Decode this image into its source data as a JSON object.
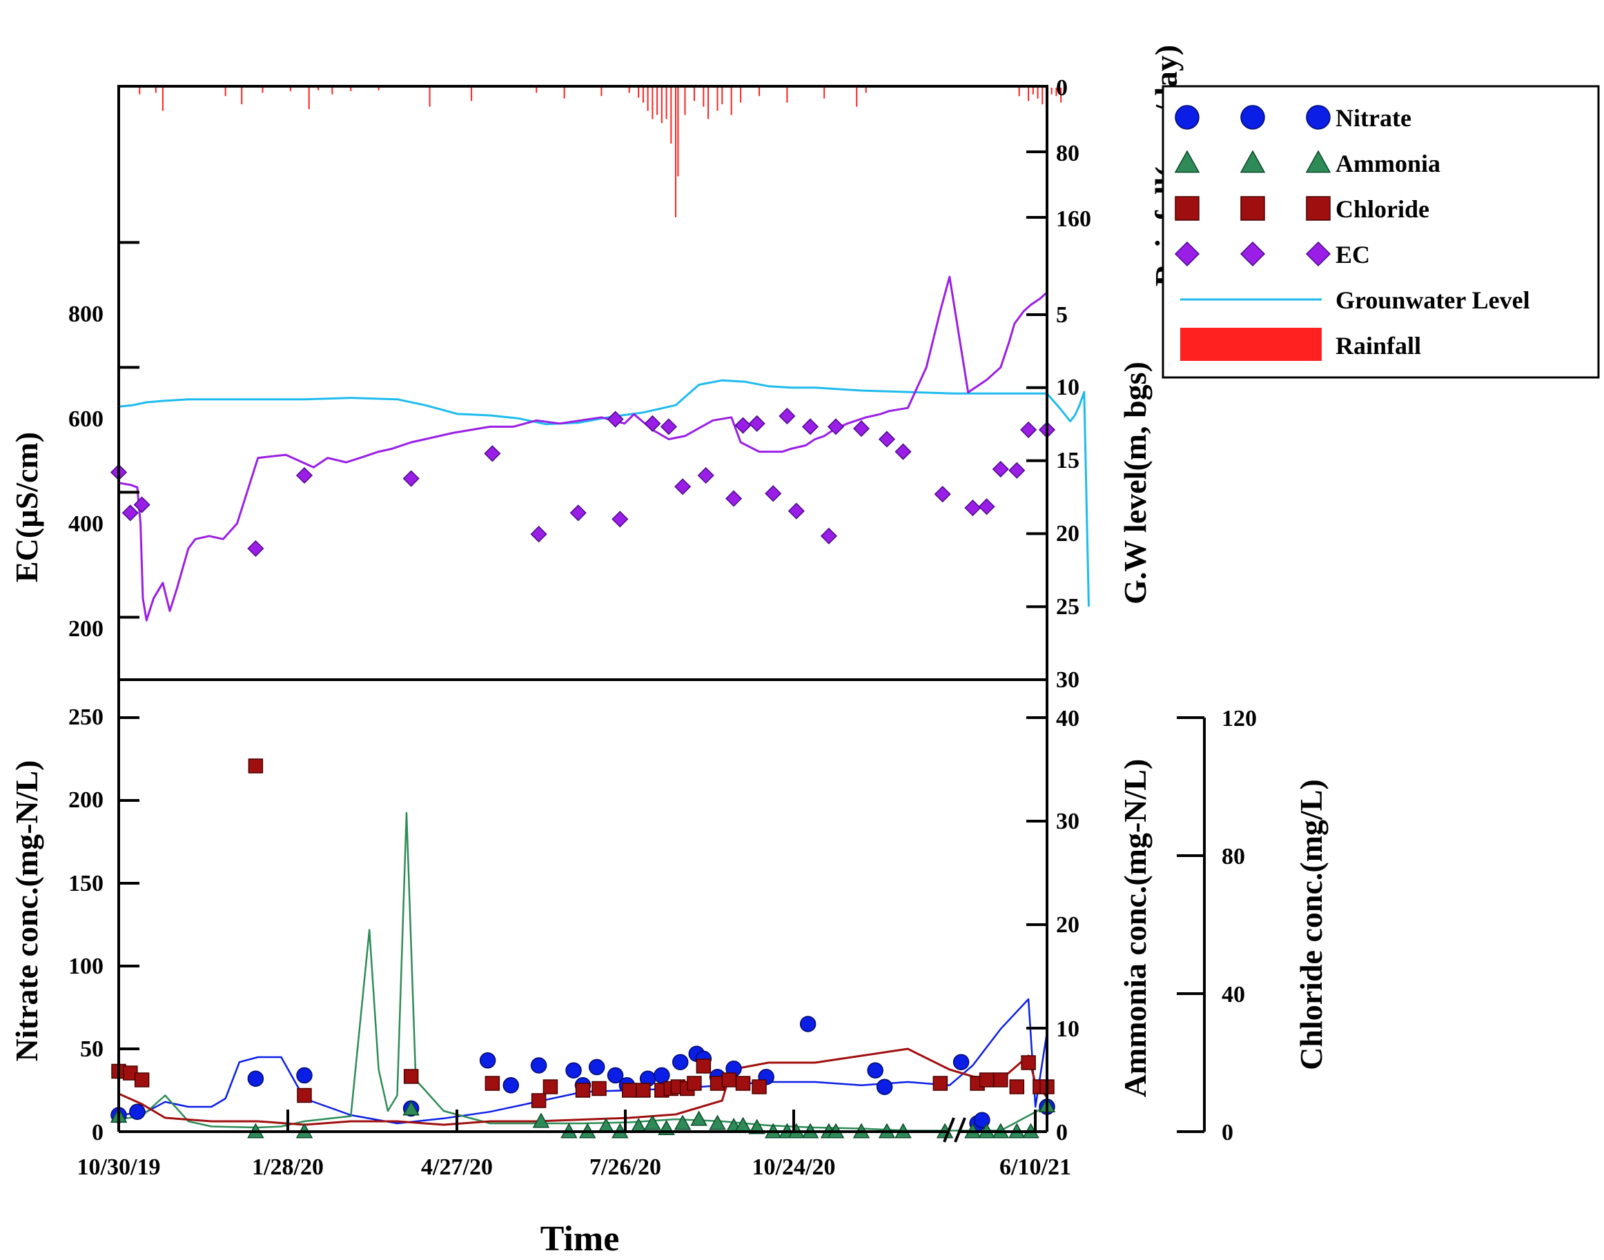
{
  "colors": {
    "nitrate": "#0a1ee6",
    "ammonia": "#2e8b57",
    "chloride": "#a00f0f",
    "ec": "#9a1ee6",
    "groundwater": "#1ebbee",
    "rainfall": "#ff2020"
  },
  "chart_data": [
    {
      "type": "line",
      "panel": "top",
      "xlabel": "Time",
      "ylabel_left": "EC(µS/cm)",
      "ylabel_right": "G.W level(m, bgs)",
      "ylabel_right_top": "Rainfall(mm/day)",
      "left_ticks": [
        "800",
        "600",
        "400",
        "200"
      ],
      "left_ylim": [
        100,
        1050
      ],
      "gw_ticks": [
        "5",
        "10",
        "15",
        "20",
        "25",
        "30"
      ],
      "gw_ylim": [
        5,
        30
      ],
      "rain_ticks": [
        "0",
        "80",
        "160"
      ],
      "rain_ylim": [
        0,
        180
      ],
      "legend": {
        "items": [
          {
            "key": "nitrate",
            "label": "Nitrate",
            "icon": "circle"
          },
          {
            "key": "ammonia",
            "label": "Ammonia",
            "icon": "triangle"
          },
          {
            "key": "chloride",
            "label": "Chloride",
            "icon": "square"
          },
          {
            "key": "ec",
            "label": "EC",
            "icon": "diamond"
          },
          {
            "key": "groundwater",
            "label": "Grounwater Level",
            "icon": "line"
          },
          {
            "key": "rainfall",
            "label": "Rainfall",
            "icon": "bar"
          }
        ]
      },
      "series": [
        {
          "name": "EC (continuous)",
          "x": [
            0,
            25,
            40,
            47,
            52,
            60,
            75,
            95,
            110,
            125,
            150,
            165,
            195,
            225,
            255,
            300,
            360,
            420,
            450,
            490,
            520,
            560,
            590,
            630,
            660,
            720,
            760,
            800,
            850,
            900,
            950,
            1040,
            1090,
            1110,
            1150,
            1185,
            1220,
            1280,
            1320,
            1340,
            1380,
            1430,
            1450,
            1480,
            1500,
            1520,
            1540,
            1570,
            1610,
            1640,
            1660,
            1700,
            1740,
            1770,
            1790,
            1830,
            1870,
            1900,
            1918,
            1930,
            1950,
            1965,
            1985,
            2000
          ],
          "values": [
            415,
            412,
            408,
            350,
            230,
            195,
            230,
            255,
            210,
            245,
            310,
            325,
            330,
            325,
            350,
            455,
            460,
            440,
            455,
            448,
            455,
            465,
            470,
            480,
            485,
            495,
            500,
            505,
            505,
            515,
            510,
            520,
            510,
            525,
            500,
            485,
            490,
            515,
            520,
            480,
            465,
            465,
            470,
            475,
            485,
            490,
            500,
            510,
            520,
            525,
            530,
            535,
            600,
            690,
            745,
            560,
            580,
            600,
            640,
            670,
            690,
            700,
            710,
            720
          ]
        },
        {
          "name": "EC (samples)",
          "x": [
            0,
            25,
            50,
            295,
            400,
            630,
            805,
            905,
            990,
            1070,
            1080,
            1150,
            1185,
            1215,
            1265,
            1325,
            1345,
            1375,
            1410,
            1440,
            1460,
            1490,
            1530,
            1545,
            1600,
            1655,
            1690,
            1775,
            1840,
            1870,
            1900,
            1935,
            1960,
            2000
          ],
          "values": [
            432,
            367,
            380,
            310,
            427,
            422,
            462,
            333,
            367,
            517,
            357,
            510,
            505,
            409,
            427,
            390,
            507,
            510,
            398,
            522,
            370,
            505,
            330,
            505,
            502,
            485,
            465,
            397,
            375,
            377,
            437,
            435,
            500,
            500
          ]
        },
        {
          "name": "Groundwater level",
          "x": [
            0,
            30,
            60,
            100,
            150,
            200,
            300,
            400,
            500,
            600,
            660,
            730,
            800,
            860,
            920,
            990,
            1060,
            1130,
            1200,
            1250,
            1300,
            1350,
            1400,
            1450,
            1500,
            1600,
            1700,
            1800,
            1900,
            2000,
            2030,
            2050,
            2060,
            2070,
            2080,
            2090
          ],
          "values": [
            11.3,
            11.2,
            11.0,
            10.9,
            10.8,
            10.8,
            10.8,
            10.8,
            10.7,
            10.8,
            11.2,
            11.8,
            11.9,
            12.1,
            12.5,
            12.4,
            12.0,
            11.7,
            11.2,
            9.8,
            9.5,
            9.6,
            9.9,
            10.0,
            10.0,
            10.2,
            10.3,
            10.4,
            10.4,
            10.4,
            11.5,
            12.3,
            11.9,
            11.2,
            10.3,
            25.0
          ]
        },
        {
          "name": "Rainfall (daily bars)",
          "x": [
            45,
            80,
            95,
            230,
            265,
            310,
            370,
            410,
            430,
            460,
            500,
            560,
            670,
            760,
            900,
            960,
            1040,
            1100,
            1120,
            1130,
            1140,
            1150,
            1160,
            1170,
            1180,
            1190,
            1200,
            1205,
            1220,
            1240,
            1260,
            1270,
            1290,
            1300,
            1320,
            1340,
            1380,
            1440,
            1520,
            1590,
            1610,
            1940,
            1960,
            1970,
            1980,
            1990,
            2000,
            2010,
            2020,
            2030
          ],
          "values": [
            10,
            8,
            30,
            12,
            22,
            8,
            6,
            28,
            5,
            10,
            6,
            5,
            25,
            18,
            8,
            15,
            12,
            8,
            14,
            20,
            30,
            40,
            35,
            45,
            40,
            70,
            160,
            110,
            35,
            18,
            25,
            40,
            30,
            22,
            35,
            20,
            12,
            20,
            15,
            25,
            8,
            12,
            18,
            10,
            15,
            22,
            12,
            10,
            12,
            20
          ]
        }
      ]
    },
    {
      "type": "scatter",
      "panel": "bottom",
      "xlabel": "Time",
      "ylabel_left": "Nitrate conc.(mg-N/L)",
      "ylabel_right": "Ammonia conc.(mg-N/L)",
      "ylabel_far_right": "Chloride conc.(mg/L)",
      "x_ticks": [
        "10/30/19",
        "1/28/20",
        "4/27/20",
        "7/26/20",
        "10/24/20",
        "6/10/21"
      ],
      "nitrate_ticks": [
        "0",
        "50",
        "100",
        "150",
        "200",
        "250"
      ],
      "nitrate_ylim": [
        0,
        250
      ],
      "ammonia_ticks": [
        "0",
        "10",
        "20",
        "30",
        "40"
      ],
      "ammonia_ylim": [
        0,
        40
      ],
      "chloride_ticks": [
        "0",
        "40",
        "80",
        "120"
      ],
      "chloride_ylim": [
        0,
        120
      ],
      "series": [
        {
          "name": "Nitrate (samples)",
          "x": [
            0,
            40,
            295,
            400,
            630,
            795,
            845,
            905,
            980,
            1000,
            1030,
            1070,
            1095,
            1140,
            1170,
            1210,
            1245,
            1260,
            1290,
            1325,
            1395,
            1485,
            1630,
            1650,
            1815,
            1850,
            1860,
            2000
          ],
          "values": [
            10,
            12,
            32,
            34,
            14,
            43,
            28,
            40,
            37,
            28,
            39,
            34,
            28,
            32,
            34,
            42,
            47,
            44,
            33,
            38,
            33,
            65,
            37,
            27,
            42,
            5,
            7,
            15
          ]
        },
        {
          "name": "Ammonia (samples)",
          "x": [
            0,
            295,
            400,
            630,
            910,
            970,
            1010,
            1050,
            1080,
            1120,
            1150,
            1180,
            1215,
            1250,
            1290,
            1325,
            1345,
            1375,
            1410,
            1440,
            1460,
            1490,
            1530,
            1545,
            1600,
            1655,
            1690,
            1780,
            1840,
            1870,
            1900,
            1935,
            1965,
            2000
          ],
          "values": [
            1.5,
            0,
            0,
            2.2,
            1.0,
            0,
            0,
            0.5,
            0,
            0.5,
            0.8,
            0.3,
            0.8,
            1.2,
            0.8,
            0.5,
            0.6,
            0.4,
            0,
            0,
            0,
            0,
            0,
            0,
            0,
            0,
            0,
            0,
            0,
            0,
            0,
            0,
            0,
            2.5
          ]
        },
        {
          "name": "Chloride (samples)",
          "x": [
            0,
            25,
            50,
            295,
            400,
            630,
            805,
            905,
            930,
            1000,
            1035,
            1100,
            1130,
            1170,
            1190,
            1205,
            1225,
            1240,
            1260,
            1290,
            1315,
            1345,
            1380,
            1770,
            1850,
            1870,
            1900,
            1935,
            1960,
            1985,
            2000
          ],
          "values": [
            17.5,
            17,
            15,
            106,
            10.5,
            16,
            14,
            9,
            13,
            12,
            12.5,
            12,
            12,
            12,
            12.5,
            13,
            12.5,
            14,
            19,
            14,
            15,
            14,
            13,
            14,
            14,
            15,
            15,
            13,
            20,
            13,
            13
          ]
        },
        {
          "name": "Nitrate (continuous)",
          "x": [
            0,
            60,
            100,
            150,
            200,
            230,
            260,
            300,
            350,
            400,
            450,
            500,
            600,
            700,
            800,
            900,
            1000,
            1100,
            1200,
            1300,
            1400,
            1500,
            1600,
            1700,
            1790,
            1840,
            1900,
            1960,
            1975,
            2000
          ],
          "values": [
            10,
            12,
            18,
            15,
            15,
            20,
            42,
            45,
            45,
            20,
            15,
            10,
            5,
            8,
            12,
            18,
            24,
            25,
            26,
            28,
            30,
            30,
            28,
            30,
            28,
            40,
            62,
            80,
            15,
            60
          ]
        },
        {
          "name": "Ammonia (continuous)",
          "x": [
            0,
            50,
            100,
            150,
            200,
            300,
            350,
            400,
            500,
            540,
            560,
            580,
            600,
            620,
            640,
            700,
            800,
            900,
            1000,
            1100,
            1200,
            1300,
            1400,
            1500,
            1600,
            1700,
            1800,
            1900,
            2000
          ],
          "values": [
            1.2,
            1.5,
            3.5,
            1.0,
            0.5,
            0.4,
            0.5,
            1.0,
            1.5,
            19.5,
            6,
            2,
            3.5,
            30.8,
            5,
            2.0,
            0.8,
            0.8,
            0.8,
            0.9,
            1.2,
            1.0,
            0.6,
            0.4,
            0.3,
            0.1,
            0.1,
            0.1,
            2.5
          ]
        },
        {
          "name": "Chloride (continuous)",
          "x": [
            0,
            50,
            100,
            200,
            300,
            400,
            500,
            600,
            700,
            800,
            900,
            1000,
            1100,
            1200,
            1250,
            1300,
            1320,
            1400,
            1500,
            1600,
            1700,
            1790,
            1840,
            1900,
            1960,
            1975,
            2000
          ],
          "values": [
            11,
            8,
            4,
            3,
            3,
            2,
            3,
            3,
            2,
            3,
            3,
            3.5,
            4,
            5,
            7,
            9,
            18,
            20,
            20,
            22,
            24,
            18,
            16,
            15,
            22,
            14,
            10
          ]
        }
      ]
    }
  ]
}
